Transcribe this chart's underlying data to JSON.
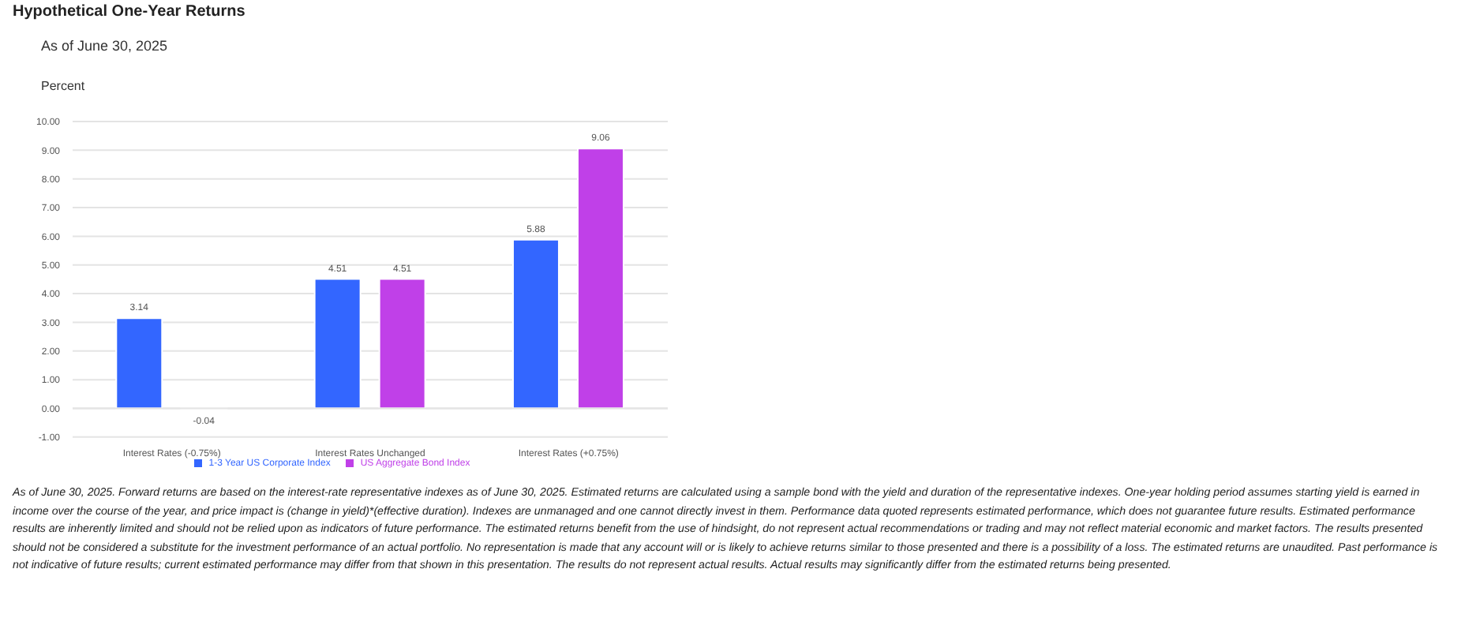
{
  "chart_data": {
    "type": "bar",
    "title": "Hypothetical One-Year Returns",
    "subtitle": "As of June 30, 2025",
    "ylabel": "Percent",
    "categories": [
      "Interest Rates (-0.75%)",
      "Interest Rates Unchanged",
      "Interest Rates (+0.75%)"
    ],
    "series": [
      {
        "name": "1-3 Year US Corporate Index",
        "color": "#3366ff",
        "values": [
          3.14,
          4.51,
          5.88
        ]
      },
      {
        "name": "US Aggregate Bond Index",
        "color": "#c040e8",
        "values": [
          -0.04,
          4.51,
          9.06
        ]
      }
    ],
    "ylim": [
      -1,
      10
    ],
    "yticks": [
      {
        "value": -1,
        "label": "-1.00"
      },
      {
        "value": 0,
        "label": "0.00"
      },
      {
        "value": 1,
        "label": "1.00"
      },
      {
        "value": 2,
        "label": "2.00"
      },
      {
        "value": 3,
        "label": "3.00"
      },
      {
        "value": 4,
        "label": "4.00"
      },
      {
        "value": 5,
        "label": "5.00"
      },
      {
        "value": 6,
        "label": "6.00"
      },
      {
        "value": 7,
        "label": "7.00"
      },
      {
        "value": 8,
        "label": "8.00"
      },
      {
        "value": 9,
        "label": "9.00"
      },
      {
        "value": 10,
        "label": "10.00"
      }
    ],
    "grid": "y",
    "legend": "bottom",
    "data_labels": true,
    "annotations": [
      "As of June 30, 2025. Forward returns are based on the interest-rate representative indexes as of June 30, 2025. Estimated returns are calculated using a sample bond with the yield and duration of the representative indexes. One-year holding period assumes starting yield is earned in income over the course of the year, and price impact is (change in yield)*(effective duration).  Indexes are unmanaged and one cannot directly invest in them. Performance data quoted represents estimated performance, which does not guarantee future results. Estimated performance results are inherently limited and should not be relied upon as indicators of future performance. The estimated returns benefit from the use of hindsight, do not represent actual recommendations or trading and may not reflect material economic and market factors. The results presented should not be considered a substitute for the investment performance of an actual portfolio. No representation is made that any account will or is likely to achieve returns similar to those presented and there is a possibility of a loss. The estimated returns are unaudited. Past performance is not indicative of future results; current estimated performance may differ from that shown in this presentation. The results do not represent actual results. Actual results may significantly differ from the estimated returns being presented."
    ]
  }
}
